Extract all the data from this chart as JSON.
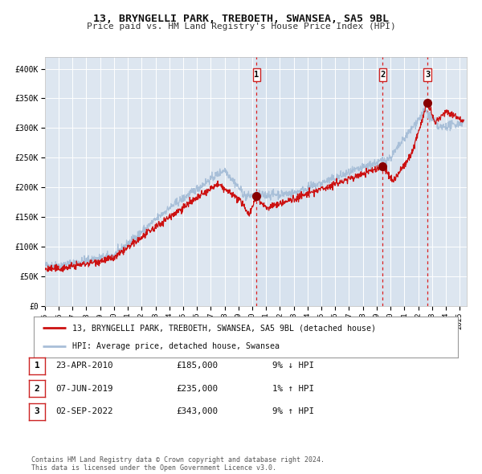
{
  "title": "13, BRYNGELLI PARK, TREBOETH, SWANSEA, SA5 9BL",
  "subtitle": "Price paid vs. HM Land Registry's House Price Index (HPI)",
  "background_color": "#ffffff",
  "plot_bg_color": "#dde6f0",
  "grid_color": "#ffffff",
  "transactions": [
    {
      "date_num": 2010.31,
      "price": 185000,
      "label": "1"
    },
    {
      "date_num": 2019.44,
      "price": 235000,
      "label": "2"
    },
    {
      "date_num": 2022.67,
      "price": 343000,
      "label": "3"
    }
  ],
  "legend_line1": "13, BRYNGELLI PARK, TREBOETH, SWANSEA, SA5 9BL (detached house)",
  "legend_line2": "HPI: Average price, detached house, Swansea",
  "table_rows": [
    {
      "num": "1",
      "date": "23-APR-2010",
      "price": "£185,000",
      "change": "9% ↓ HPI"
    },
    {
      "num": "2",
      "date": "07-JUN-2019",
      "price": "£235,000",
      "change": "1% ↑ HPI"
    },
    {
      "num": "3",
      "date": "02-SEP-2022",
      "price": "£343,000",
      "change": "9% ↑ HPI"
    }
  ],
  "footer": "Contains HM Land Registry data © Crown copyright and database right 2024.\nThis data is licensed under the Open Government Licence v3.0.",
  "hpi_line_color": "#a8bfd8",
  "price_line_color": "#cc1111",
  "dot_color": "#880000",
  "dashed_line_color": "#dd2222",
  "ylim": [
    0,
    420000
  ],
  "xlim_start": 1995.0,
  "xlim_end": 2025.5,
  "yticks": [
    0,
    50000,
    100000,
    150000,
    200000,
    250000,
    300000,
    350000,
    400000
  ],
  "xticks": [
    1995,
    1996,
    1997,
    1998,
    1999,
    2000,
    2001,
    2002,
    2003,
    2004,
    2005,
    2006,
    2007,
    2008,
    2009,
    2010,
    2011,
    2012,
    2013,
    2014,
    2015,
    2016,
    2017,
    2018,
    2019,
    2020,
    2021,
    2022,
    2023,
    2024,
    2025
  ]
}
